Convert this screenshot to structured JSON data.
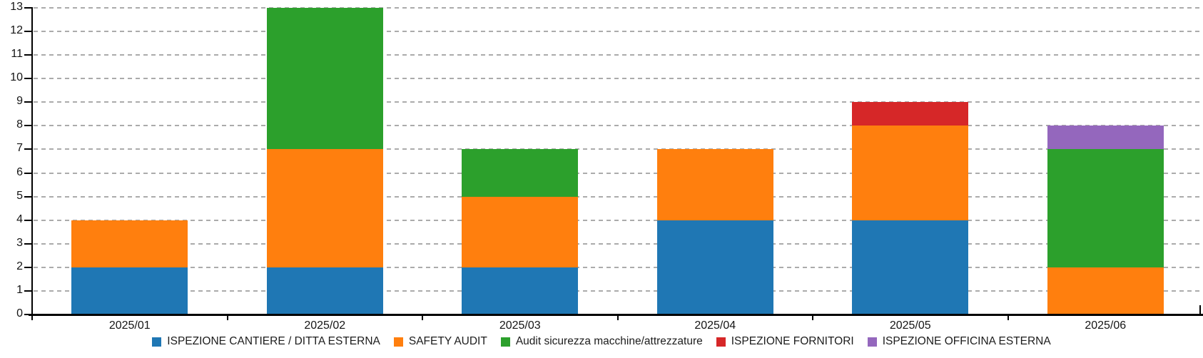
{
  "chart_data": {
    "type": "bar",
    "stacked": true,
    "orientation": "vertical",
    "title": "",
    "xlabel": "",
    "ylabel": "",
    "categories": [
      "2025/01",
      "2025/02",
      "2025/03",
      "2025/04",
      "2025/05",
      "2025/06"
    ],
    "series": [
      {
        "name": "ISPEZIONE CANTIERE / DITTA ESTERNA",
        "color": "#1F77B4",
        "values": [
          2,
          2,
          2,
          4,
          4,
          0
        ]
      },
      {
        "name": "SAFETY AUDIT",
        "color": "#FF7F0E",
        "values": [
          2,
          5,
          3,
          3,
          4,
          2
        ]
      },
      {
        "name": "Audit sicurezza macchine/attrezzature",
        "color": "#2CA02C",
        "values": [
          0,
          6,
          2,
          0,
          0,
          5
        ]
      },
      {
        "name": "ISPEZIONE FORNITORI",
        "color": "#D62728",
        "values": [
          0,
          0,
          0,
          0,
          1,
          0
        ]
      },
      {
        "name": "ISPEZIONE OFFICINA ESTERNA",
        "color": "#9467BD",
        "values": [
          0,
          0,
          0,
          0,
          0,
          1
        ]
      }
    ],
    "stack_totals": [
      4,
      13,
      7,
      7,
      9,
      8
    ],
    "ylim": [
      0,
      13
    ],
    "y_ticks": [
      "0",
      "1",
      "2",
      "3",
      "4",
      "5",
      "6",
      "7",
      "8",
      "9",
      "10",
      "11",
      "12",
      "13"
    ],
    "grid": "dashed-horizontal",
    "legend_position": "bottom-center",
    "colors": {
      "axis": "#000000",
      "gridline": "#ABABAB",
      "text": "#151515",
      "background": "#FFFFFF"
    }
  }
}
